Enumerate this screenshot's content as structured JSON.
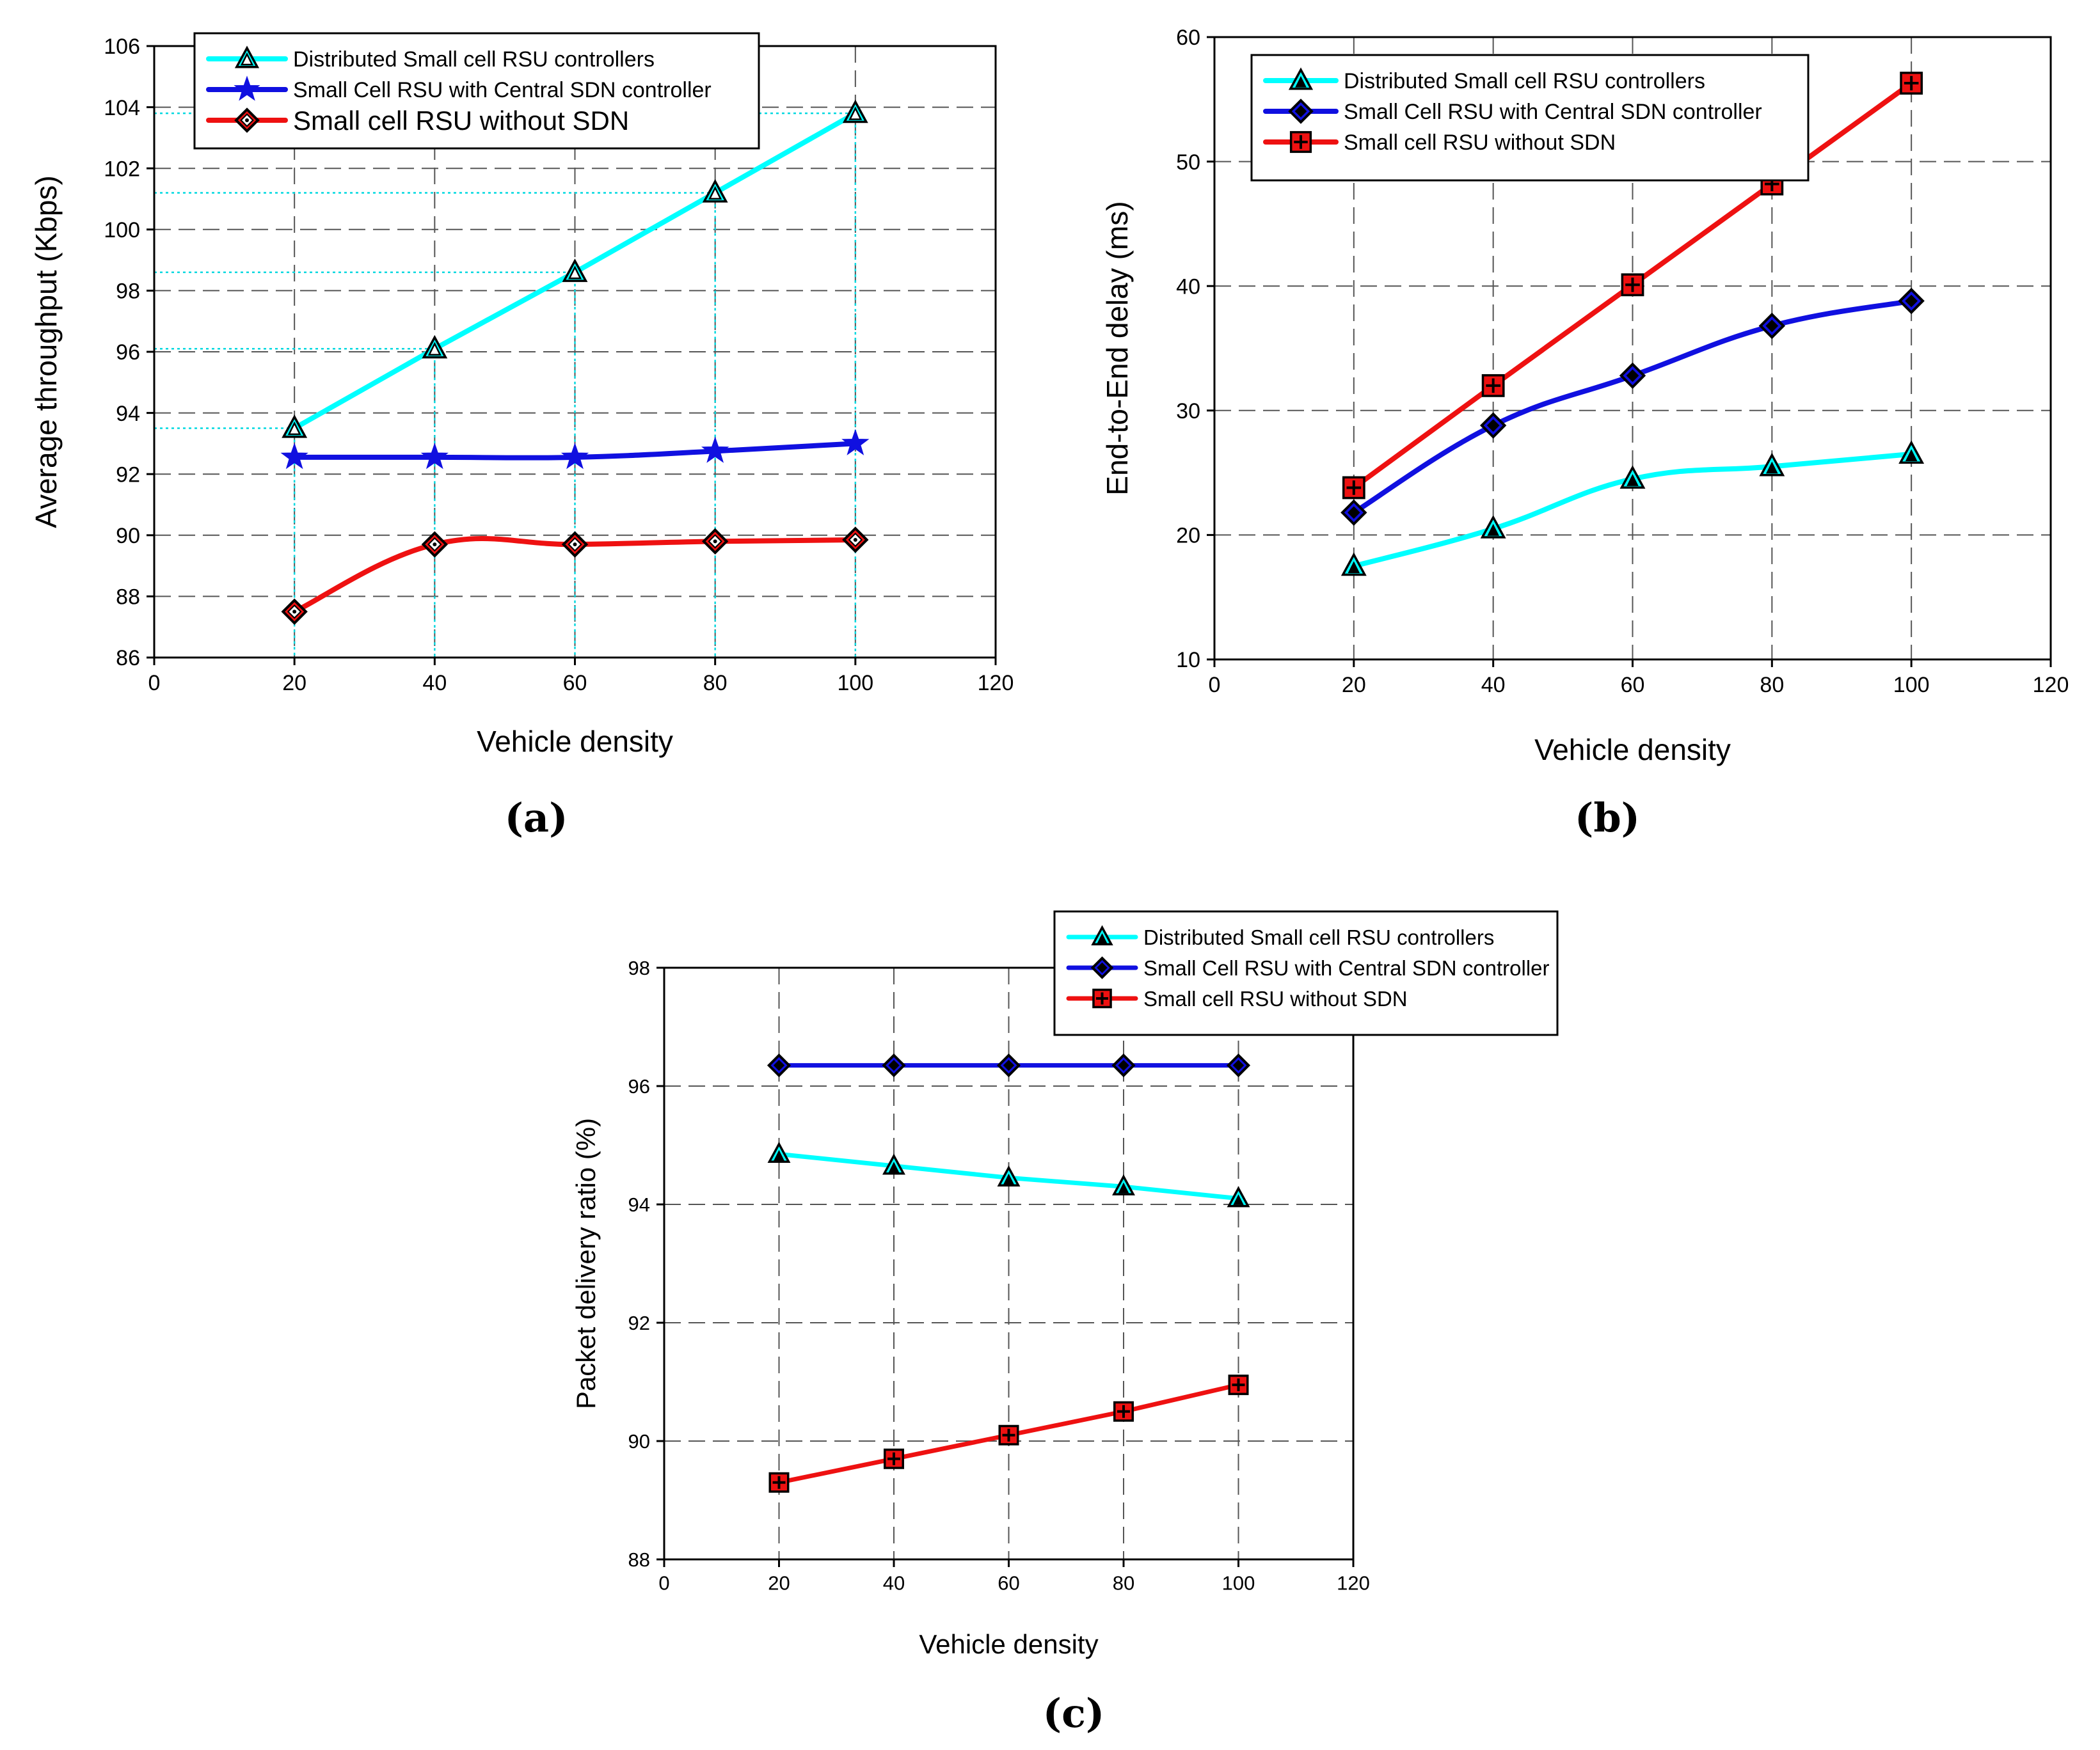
{
  "colors": {
    "cyan": "#00ffff",
    "blue": "#1010e0",
    "red": "#ee1111",
    "grid": "#555555",
    "guide": "#00d8e0"
  },
  "chart_data": [
    {
      "id": "a",
      "type": "line",
      "caption": "(a)",
      "title": "",
      "xlabel": "Vehicle density",
      "ylabel": "Average throughput (Kbps)",
      "xlim": [
        0,
        120
      ],
      "ylim": [
        86,
        106
      ],
      "xticks": [
        "0",
        "20",
        "40",
        "60",
        "80",
        "100",
        "120"
      ],
      "yticks": [
        "86",
        "88",
        "90",
        "92",
        "94",
        "96",
        "98",
        "100",
        "102",
        "104",
        "106"
      ],
      "x": [
        20,
        40,
        60,
        80,
        100
      ],
      "series": [
        {
          "name": "Distributed Small cell RSU controllers",
          "color": "#00ffff",
          "marker": "triangle-open",
          "values": [
            93.5,
            96.1,
            98.6,
            101.2,
            103.8
          ]
        },
        {
          "name": "Small Cell RSU with Central SDN controller",
          "color": "#1010e0",
          "marker": "star",
          "values": [
            92.55,
            92.55,
            92.55,
            92.75,
            93.0
          ]
        },
        {
          "name": "Small cell RSU without SDN",
          "color": "#ee1111",
          "marker": "diamond-dot",
          "values": [
            87.5,
            89.7,
            89.7,
            89.8,
            89.85
          ]
        }
      ],
      "legend": "top"
    },
    {
      "id": "b",
      "type": "line",
      "caption": "(b)",
      "title": "",
      "xlabel": "Vehicle density",
      "ylabel": "End-to-End delay (ms)",
      "xlim": [
        0,
        120
      ],
      "ylim": [
        10,
        60
      ],
      "xticks": [
        "0",
        "20",
        "40",
        "60",
        "80",
        "100",
        "120"
      ],
      "yticks": [
        "10",
        "20",
        "30",
        "40",
        "50",
        "60"
      ],
      "x": [
        20,
        40,
        60,
        80,
        100
      ],
      "series": [
        {
          "name": "Distributed Small cell RSU controllers",
          "color": "#00ffff",
          "marker": "triangle-filled",
          "values": [
            17.5,
            20.5,
            24.5,
            25.5,
            26.5
          ]
        },
        {
          "name": "Small Cell RSU with Central SDN controller",
          "color": "#1010e0",
          "marker": "diamond-filled",
          "values": [
            21.8,
            28.8,
            32.8,
            36.8,
            38.8
          ]
        },
        {
          "name": "Small cell RSU without SDN",
          "color": "#ee1111",
          "marker": "square-cross",
          "values": [
            23.8,
            32.0,
            40.1,
            48.2,
            56.3
          ]
        }
      ],
      "legend": "top-left"
    },
    {
      "id": "c",
      "type": "line",
      "caption": "(c)",
      "title": "",
      "xlabel": "Vehicle density",
      "ylabel": "Packet delivery ratio (%)",
      "xlim": [
        0,
        120
      ],
      "ylim": [
        88,
        98
      ],
      "xticks": [
        "0",
        "20",
        "40",
        "60",
        "80",
        "100",
        "120"
      ],
      "yticks": [
        "88",
        "90",
        "92",
        "94",
        "96",
        "98"
      ],
      "x": [
        20,
        40,
        60,
        80,
        100
      ],
      "series": [
        {
          "name": "Distributed Small cell RSU controllers",
          "color": "#00ffff",
          "marker": "triangle-filled",
          "values": [
            94.85,
            94.65,
            94.45,
            94.3,
            94.1
          ]
        },
        {
          "name": "Small Cell RSU with Central SDN controller",
          "color": "#1010e0",
          "marker": "diamond-filled",
          "values": [
            96.35,
            96.35,
            96.35,
            96.35,
            96.35
          ]
        },
        {
          "name": "Small cell RSU without SDN",
          "color": "#ee1111",
          "marker": "square-cross",
          "values": [
            89.3,
            89.7,
            90.1,
            90.5,
            90.95
          ]
        }
      ],
      "legend": "top-right"
    }
  ]
}
